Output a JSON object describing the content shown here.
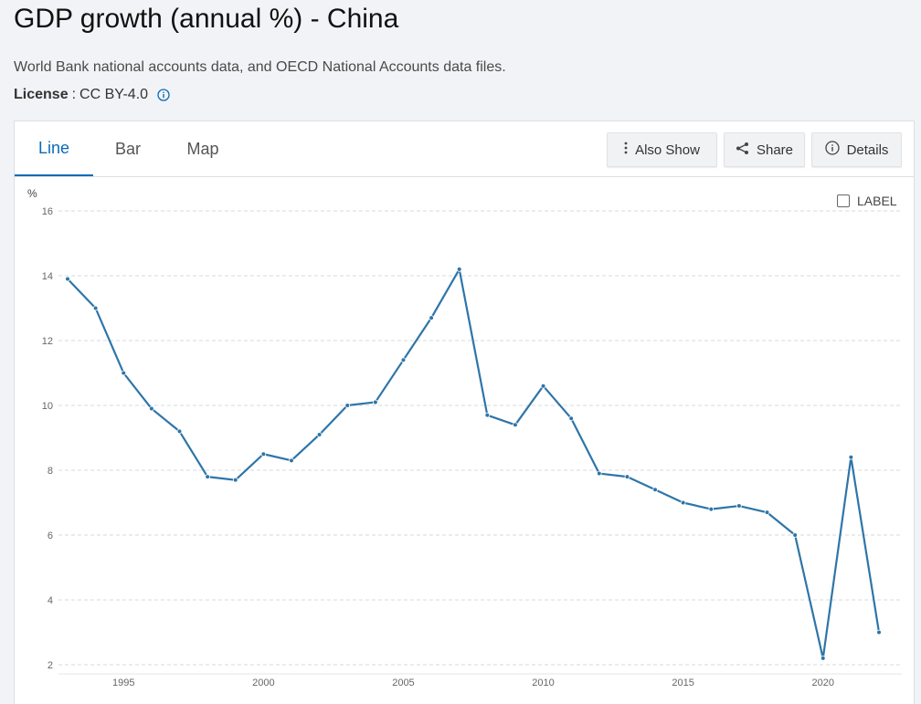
{
  "header": {
    "title": "GDP growth (annual %) - China",
    "source": "World Bank national accounts data, and OECD National Accounts data files.",
    "license_label": "License",
    "license_value": "CC BY-4.0"
  },
  "tabs": [
    {
      "label": "Line",
      "active": true
    },
    {
      "label": "Bar",
      "active": false
    },
    {
      "label": "Map",
      "active": false
    }
  ],
  "toolbar": {
    "also_show": "Also Show",
    "share": "Share",
    "details": "Details",
    "label_toggle": "LABEL"
  },
  "colors": {
    "accent": "#0a6bb5",
    "series": "#2e75a8"
  },
  "chart_data": {
    "type": "line",
    "ylabel": "%",
    "ylim": [
      2,
      16
    ],
    "yticks": [
      2,
      4,
      6,
      8,
      10,
      12,
      14,
      16
    ],
    "xlim": [
      1993,
      2022
    ],
    "xticks": [
      1995,
      2000,
      2005,
      2010,
      2015,
      2020
    ],
    "grid": "horizontal dashed",
    "series": [
      {
        "x": [
          1993,
          1994,
          1995,
          1996,
          1997,
          1998,
          1999,
          2000,
          2001,
          2002,
          2003,
          2004,
          2005,
          2006,
          2007,
          2008,
          2009,
          2010,
          2011,
          2012,
          2013,
          2014,
          2015,
          2016,
          2017,
          2018,
          2019,
          2020,
          2021,
          2022
        ],
        "values": [
          13.9,
          13.0,
          11.0,
          9.9,
          9.2,
          7.8,
          7.7,
          8.5,
          8.3,
          9.1,
          10.0,
          10.1,
          11.4,
          12.7,
          14.2,
          9.7,
          9.4,
          10.6,
          9.6,
          7.9,
          7.8,
          7.4,
          7.0,
          6.8,
          6.9,
          6.7,
          6.0,
          2.2,
          8.4,
          3.0
        ]
      }
    ]
  }
}
